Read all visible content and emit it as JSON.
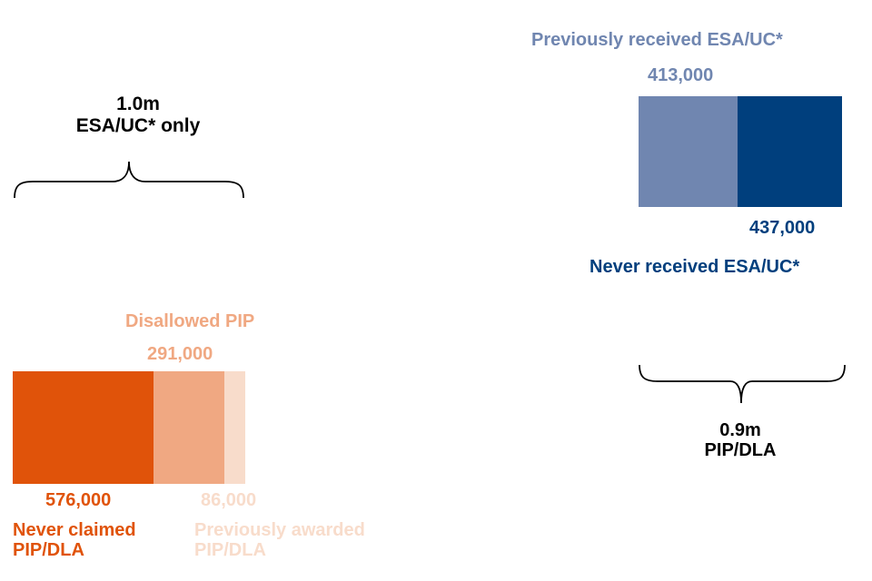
{
  "colors": {
    "never_claimed": "#e0530a",
    "disallowed": "#f0a882",
    "previously_awarded": "#f8dccb",
    "previously_received": "#7086b0",
    "never_received": "#003f7d",
    "text_dark": "#000000"
  },
  "chart_data": [
    {
      "type": "bar",
      "orientation": "horizontal",
      "stacked": true,
      "total_label": "1.0m",
      "group_label": "ESA/UC* only",
      "segments": [
        {
          "name": "Never claimed PIP/DLA",
          "value": 576000,
          "label": "576,000",
          "color": "#e0530a"
        },
        {
          "name": "Disallowed PIP",
          "value": 291000,
          "label": "291,000",
          "color": "#f0a882"
        },
        {
          "name": "Previously awarded PIP/DLA",
          "value": 86000,
          "label": "86,000",
          "color": "#f8dccb"
        }
      ]
    },
    {
      "type": "bar",
      "orientation": "horizontal",
      "stacked": true,
      "total_label": "0.9m",
      "group_label": "PIP/DLA",
      "segments": [
        {
          "name": "Previously received ESA/UC*",
          "value": 413000,
          "label": "413,000",
          "color": "#7086b0"
        },
        {
          "name": "Never received ESA/UC*",
          "value": 437000,
          "label": "437,000",
          "color": "#003f7d"
        }
      ]
    }
  ]
}
